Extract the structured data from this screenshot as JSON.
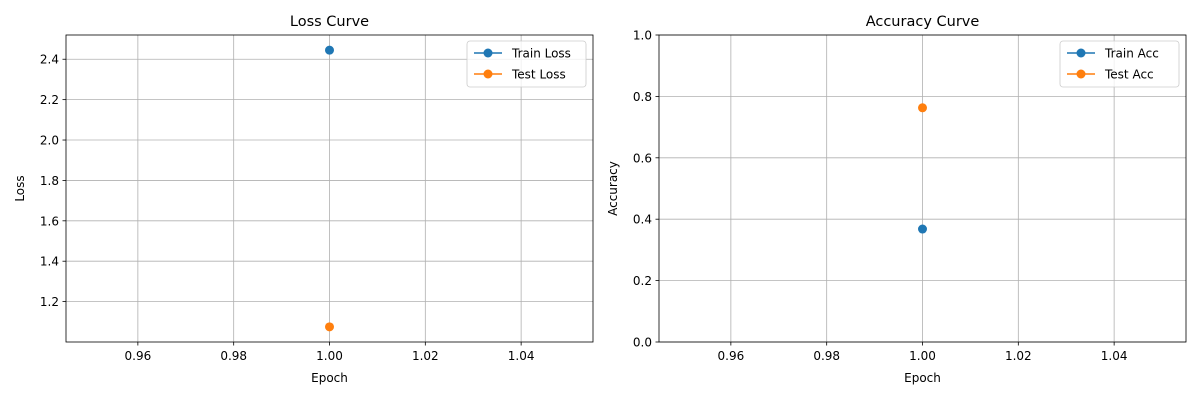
{
  "chart_data": [
    {
      "type": "line",
      "title": "Loss Curve",
      "xlabel": "Epoch",
      "ylabel": "Loss",
      "xlim": [
        0.945,
        1.055
      ],
      "ylim": [
        1.0,
        2.52
      ],
      "grid": true,
      "legend_position": "top-right",
      "x_ticks": [
        0.96,
        0.98,
        1.0,
        1.02,
        1.04
      ],
      "x_tick_labels": [
        "0.96",
        "0.98",
        "1.00",
        "1.02",
        "1.04"
      ],
      "y_ticks": [
        1.2,
        1.4,
        1.6,
        1.8,
        2.0,
        2.2,
        2.4
      ],
      "y_tick_labels": [
        "1.2",
        "1.4",
        "1.6",
        "1.8",
        "2.0",
        "2.2",
        "2.4"
      ],
      "series": [
        {
          "name": "Train Loss",
          "x": [
            1.0
          ],
          "y": [
            2.445
          ],
          "color": "#1f77b4"
        },
        {
          "name": "Test Loss",
          "x": [
            1.0
          ],
          "y": [
            1.075
          ],
          "color": "#ff7f0e"
        }
      ]
    },
    {
      "type": "line",
      "title": "Accuracy Curve",
      "xlabel": "Epoch",
      "ylabel": "Accuracy",
      "xlim": [
        0.945,
        1.055
      ],
      "ylim": [
        0.0,
        1.0
      ],
      "grid": true,
      "legend_position": "top-right",
      "x_ticks": [
        0.96,
        0.98,
        1.0,
        1.02,
        1.04
      ],
      "x_tick_labels": [
        "0.96",
        "0.98",
        "1.00",
        "1.02",
        "1.04"
      ],
      "y_ticks": [
        0.0,
        0.2,
        0.4,
        0.6,
        0.8,
        1.0
      ],
      "y_tick_labels": [
        "0.0",
        "0.2",
        "0.4",
        "0.6",
        "0.8",
        "1.0"
      ],
      "series": [
        {
          "name": "Train Acc",
          "x": [
            1.0
          ],
          "y": [
            0.368
          ],
          "color": "#1f77b4"
        },
        {
          "name": "Test Acc",
          "x": [
            1.0
          ],
          "y": [
            0.763
          ],
          "color": "#ff7f0e"
        }
      ]
    }
  ]
}
